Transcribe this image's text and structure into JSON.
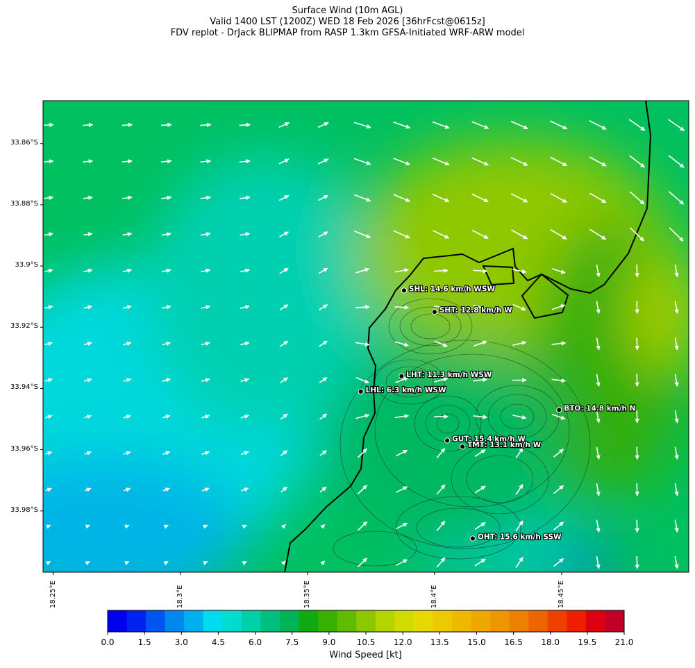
{
  "title": {
    "line1": "Surface Wind (10m AGL)",
    "line2": "Valid 1400 LST (1200Z) WED 18 Feb 2026 [36hrFcst@0615z]",
    "line3": "FDV replot - DrJack BLIPMAP from RASP 1.3km GFSA-Initiated WRF-ARW model"
  },
  "map": {
    "lon_range": [
      18.246,
      18.5
    ],
    "lat_range": [
      -34.0,
      -33.846
    ],
    "lat_ticks": [
      {
        "value": -33.86,
        "label": "33.86°S"
      },
      {
        "value": -33.88,
        "label": "33.88°S"
      },
      {
        "value": -33.9,
        "label": "33.9°S"
      },
      {
        "value": -33.92,
        "label": "33.92°S"
      },
      {
        "value": -33.94,
        "label": "33.94°S"
      },
      {
        "value": -33.96,
        "label": "33.96°S"
      },
      {
        "value": -33.98,
        "label": "33.98°S"
      }
    ],
    "lon_ticks": [
      {
        "value": 18.25,
        "label": "18.25°E"
      },
      {
        "value": 18.3,
        "label": "18.3°E"
      },
      {
        "value": 18.35,
        "label": "18.35°E"
      },
      {
        "value": 18.4,
        "label": "18.4°E"
      },
      {
        "value": 18.45,
        "label": "18.45°E"
      }
    ],
    "stations": [
      {
        "code": "SHL",
        "label": "SHL: 14.6 km/h WSW",
        "lon": 18.388,
        "lat": -33.908
      },
      {
        "code": "SHT",
        "label": "SHT: 12.8 km/h W",
        "lon": 18.4,
        "lat": -33.915
      },
      {
        "code": "LHT",
        "label": "LHT: 11.3 km/h WSW",
        "lon": 18.387,
        "lat": -33.936
      },
      {
        "code": "LHL",
        "label": "LHL: 6.3 km/h WSW",
        "lon": 18.371,
        "lat": -33.941
      },
      {
        "code": "BTO",
        "label": "BTO: 14.8 km/h N",
        "lon": 18.449,
        "lat": -33.947
      },
      {
        "code": "GUT",
        "label": "GUT: 15.4 km/h W",
        "lon": 18.405,
        "lat": -33.957
      },
      {
        "code": "TMT",
        "label": "TMT: 13.1 km/h W",
        "lon": 18.411,
        "lat": -33.959
      },
      {
        "code": "OHT",
        "label": "OHT: 15.6 km/h SSW",
        "lon": 18.415,
        "lat": -33.989
      }
    ]
  },
  "colorbar": {
    "label": "Wind Speed [kt]",
    "tick_labels": [
      "0.0",
      "1.5",
      "3.0",
      "4.5",
      "6.0",
      "7.5",
      "9.0",
      "10.5",
      "12.0",
      "13.5",
      "15.0",
      "16.5",
      "18.0",
      "19.5",
      "21.0"
    ],
    "colors": [
      "#0000ee",
      "#0022ee",
      "#0055ee",
      "#0088ee",
      "#00b0ee",
      "#00dcee",
      "#00dcd0",
      "#00d0a8",
      "#00c080",
      "#00b456",
      "#10aa10",
      "#38b000",
      "#60bc00",
      "#8cc800",
      "#b4d400",
      "#d0dc00",
      "#e6d800",
      "#eec800",
      "#eeb800",
      "#eea800",
      "#ee9600",
      "#ee8000",
      "#ee6400",
      "#ee4000",
      "#ee1e00",
      "#dd0010",
      "#c00028"
    ]
  }
}
